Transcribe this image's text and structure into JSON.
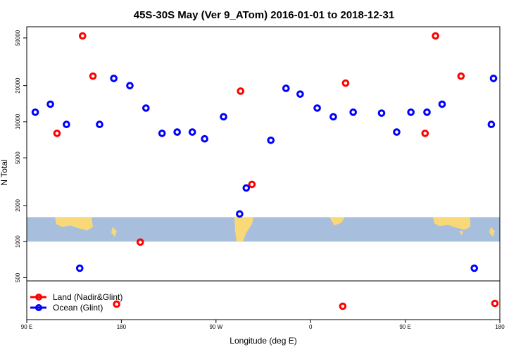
{
  "chart_data": {
    "type": "scatter",
    "title": "45S-30S May (Ver 9_ATom)   2016-01-01 to 2018-12-31",
    "xlabel": "Longitude (deg E)",
    "ylabel": "N Total",
    "y_scale": "log",
    "ylim": [
      470,
      62000
    ],
    "y_ticks": [
      500,
      1000,
      2000,
      5000,
      10000,
      20000,
      50000
    ],
    "y_tick_labels": [
      "500",
      "1000",
      "2000",
      "5000",
      "10000",
      "20000",
      "50000"
    ],
    "xlim": [
      0,
      500
    ],
    "x_ticks": [
      0,
      100,
      200,
      300,
      400,
      500
    ],
    "x_tick_labels": [
      "90 E",
      "180",
      "90 W",
      "0",
      "90 E",
      "180"
    ],
    "colors": {
      "land": "#ff0000",
      "ocean": "#0000ff",
      "map_ocean": "#a8bedd",
      "map_land": "#f9d878"
    },
    "map_band": {
      "lower_value": 1000,
      "upper_value": 1600
    },
    "series": [
      {
        "name": "Land (Nadir&Glint)",
        "color": "#ff0000",
        "x": [
          32,
          59,
          70,
          120,
          226,
          238,
          337,
          421,
          432,
          459
        ],
        "y": [
          8000,
          52000,
          24000,
          990,
          18000,
          3000,
          21000,
          8000,
          52000,
          24000
        ],
        "below_range_x": [
          95,
          334,
          497
        ]
      },
      {
        "name": "Ocean (Glint)",
        "color": "#0000ff",
        "x": [
          9,
          25,
          42,
          56,
          77,
          92,
          109,
          126,
          143,
          159,
          175,
          188,
          208,
          225,
          232,
          258,
          274,
          289,
          307,
          324,
          345,
          375,
          391,
          406,
          423,
          473,
          491
        ],
        "y": [
          12000,
          14000,
          9500,
          600,
          9500,
          23000,
          20000,
          13000,
          8000,
          8200,
          8200,
          7200,
          11000,
          1700,
          2800,
          7000,
          19000,
          17000,
          13000,
          11000,
          12000,
          11800,
          8200,
          12000,
          12000,
          600,
          9500
        ],
        "extra_x": [
          439,
          504
        ],
        "extra_y": [
          14000,
          23000
        ]
      }
    ]
  }
}
